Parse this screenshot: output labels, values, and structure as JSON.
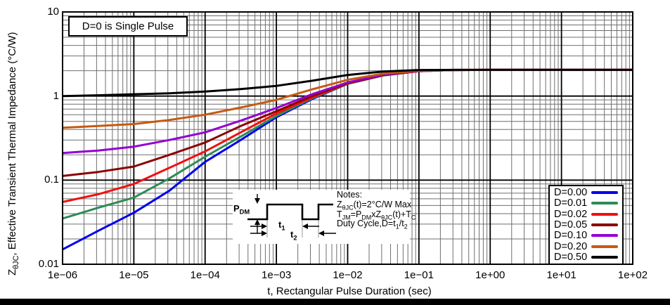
{
  "window": {
    "background": "#ffffff",
    "bottom_bar_color": "#000000"
  },
  "chart_data": {
    "type": "line",
    "title": "",
    "xlabel": "t, Rectangular Pulse Duration (sec)",
    "ylabel": "Z_{θJC}, Effective Transient Thermal Impedance (°C/W)",
    "x_scale": "log",
    "y_scale": "log",
    "xlim": [
      1e-06,
      100
    ],
    "ylim": [
      0.01,
      10
    ],
    "x_tick_labels": [
      "1e−06",
      "1e−05",
      "1e−04",
      "1e−03",
      "1e−02",
      "1e−01",
      "1e+00",
      "1e+01",
      "1e+02"
    ],
    "y_tick_labels": [
      "10",
      "1",
      "0.1",
      "0.01"
    ],
    "grid": "log major and minor, black/gray",
    "annotation": "D=0 is Single Pulse",
    "legend_position": "lower-right",
    "max_impedance_c_per_w": 2,
    "x": [
      1e-06,
      3.16e-06,
      1e-05,
      3.16e-05,
      0.0001,
      0.000316,
      0.001,
      0.00316,
      0.01,
      0.0316,
      0.1,
      0.316,
      1,
      3.16,
      10,
      31.6,
      100
    ],
    "series": [
      {
        "name": "D=0.00",
        "color": "#0000EE",
        "values": [
          0.015,
          0.025,
          0.041,
          0.075,
          0.165,
          0.3,
          0.56,
          0.92,
          1.4,
          1.76,
          1.98,
          2.04,
          2.05,
          2.05,
          2.05,
          2.05,
          2.05
        ]
      },
      {
        "name": "D=0.01",
        "color": "#2E8B57",
        "values": [
          0.035,
          0.047,
          0.062,
          0.105,
          0.19,
          0.33,
          0.58,
          0.94,
          1.4,
          1.76,
          1.98,
          2.04,
          2.05,
          2.05,
          2.05,
          2.05,
          2.05
        ]
      },
      {
        "name": "D=0.02",
        "color": "#EE1111",
        "values": [
          0.055,
          0.068,
          0.09,
          0.14,
          0.22,
          0.37,
          0.62,
          0.96,
          1.41,
          1.77,
          1.98,
          2.04,
          2.05,
          2.05,
          2.05,
          2.05,
          2.05
        ]
      },
      {
        "name": "D=0.05",
        "color": "#8B0000",
        "values": [
          0.112,
          0.125,
          0.145,
          0.2,
          0.28,
          0.44,
          0.66,
          1.0,
          1.42,
          1.78,
          1.99,
          2.04,
          2.05,
          2.05,
          2.05,
          2.05,
          2.05
        ]
      },
      {
        "name": "D=0.10",
        "color": "#9400D3",
        "values": [
          0.21,
          0.225,
          0.25,
          0.3,
          0.37,
          0.51,
          0.72,
          1.05,
          1.45,
          1.8,
          1.99,
          2.04,
          2.05,
          2.05,
          2.05,
          2.05,
          2.05
        ]
      },
      {
        "name": "D=0.20",
        "color": "#C55A11",
        "values": [
          0.42,
          0.44,
          0.465,
          0.52,
          0.6,
          0.73,
          0.9,
          1.2,
          1.56,
          1.85,
          2.0,
          2.05,
          2.05,
          2.05,
          2.05,
          2.05,
          2.05
        ]
      },
      {
        "name": "D=0.50",
        "color": "#000000",
        "values": [
          1.0,
          1.02,
          1.05,
          1.08,
          1.13,
          1.21,
          1.32,
          1.52,
          1.78,
          1.96,
          2.04,
          2.05,
          2.05,
          2.05,
          2.05,
          2.05,
          2.05
        ]
      }
    ]
  },
  "inset": {
    "pdm_label": "P_{DM}",
    "t1_label": "t_{1}",
    "t2_label": "t_{2}",
    "notes": [
      "Notes:",
      "Z_{θJC}(t)=2°C/W Max",
      "T_{JM}=P_{DM}xZ_{θJC}(t)+T_{C}",
      "Duty Cycle,D=t_{1}/t_{2}"
    ]
  }
}
